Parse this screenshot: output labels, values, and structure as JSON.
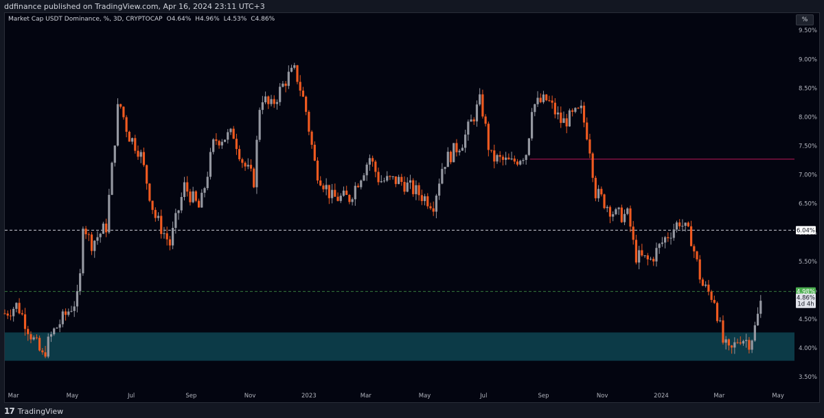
{
  "header": {
    "publisher_line": "ddfinance published on TradingView.com, Apr 16, 2024 23:11 UTC+3"
  },
  "legend": {
    "symbol": "Market Cap USDT Dominance, %, 3D, CRYPTOCAP",
    "open": "O4.64%",
    "high": "H4.96%",
    "low": "L4.53%",
    "close": "C4.86%"
  },
  "toolbar": {
    "percent_button": "%"
  },
  "footer": {
    "logo_mark": "17",
    "brand": "TradingView"
  },
  "colors": {
    "background": "#030510",
    "up_candle": "#9598a1",
    "down_candle": "#f05a20",
    "support_zone": "#0c3a47",
    "resistance_line": "#c2185b",
    "label_green": "#4caf50"
  },
  "chart_data": {
    "type": "candlestick",
    "title": "Market Cap USDT Dominance, %, 3D, CRYPTOCAP",
    "ylim": [
      3.3,
      9.8
    ],
    "y_ticks": [
      "9.50%",
      "9.00%",
      "8.50%",
      "8.00%",
      "7.50%",
      "7.00%",
      "6.50%",
      "6.00%",
      "5.50%",
      "5.00%",
      "4.50%",
      "4.00%",
      "3.50%"
    ],
    "x_ticks": [
      "Mar",
      "May",
      "Jul",
      "Sep",
      "Nov",
      "2023",
      "Mar",
      "May",
      "Jul",
      "Sep",
      "Nov",
      "2024",
      "Mar",
      "May"
    ],
    "price_series": [
      {
        "x": "2022-02-20",
        "y": 4.6
      },
      {
        "x": "2022-03-05",
        "y": 4.75
      },
      {
        "x": "2022-03-20",
        "y": 4.2
      },
      {
        "x": "2022-03-31",
        "y": 3.85
      },
      {
        "x": "2022-04-10",
        "y": 4.25
      },
      {
        "x": "2022-04-25",
        "y": 4.6
      },
      {
        "x": "2022-05-08",
        "y": 4.9
      },
      {
        "x": "2022-05-12",
        "y": 6.2
      },
      {
        "x": "2022-05-20",
        "y": 5.8
      },
      {
        "x": "2022-06-05",
        "y": 6.1
      },
      {
        "x": "2022-06-18",
        "y": 8.3
      },
      {
        "x": "2022-06-28",
        "y": 7.7
      },
      {
        "x": "2022-07-10",
        "y": 7.4
      },
      {
        "x": "2022-07-25",
        "y": 6.3
      },
      {
        "x": "2022-08-10",
        "y": 5.8
      },
      {
        "x": "2022-08-25",
        "y": 6.8
      },
      {
        "x": "2022-09-10",
        "y": 6.4
      },
      {
        "x": "2022-09-25",
        "y": 7.6
      },
      {
        "x": "2022-10-15",
        "y": 7.7
      },
      {
        "x": "2022-10-25",
        "y": 7.2
      },
      {
        "x": "2022-11-05",
        "y": 6.9
      },
      {
        "x": "2022-11-12",
        "y": 8.4
      },
      {
        "x": "2022-11-22",
        "y": 8.15
      },
      {
        "x": "2022-12-10",
        "y": 8.7
      },
      {
        "x": "2022-12-18",
        "y": 8.8
      },
      {
        "x": "2022-12-28",
        "y": 8.2
      },
      {
        "x": "2023-01-08",
        "y": 7.1
      },
      {
        "x": "2023-01-25",
        "y": 6.6
      },
      {
        "x": "2023-02-12",
        "y": 6.6
      },
      {
        "x": "2023-03-05",
        "y": 7.3
      },
      {
        "x": "2023-03-15",
        "y": 6.9
      },
      {
        "x": "2023-04-05",
        "y": 6.9
      },
      {
        "x": "2023-05-10",
        "y": 6.5
      },
      {
        "x": "2023-05-20",
        "y": 7.2
      },
      {
        "x": "2023-06-10",
        "y": 7.6
      },
      {
        "x": "2023-06-28",
        "y": 8.3
      },
      {
        "x": "2023-07-08",
        "y": 7.3
      },
      {
        "x": "2023-07-30",
        "y": 7.2
      },
      {
        "x": "2023-08-15",
        "y": 7.4
      },
      {
        "x": "2023-08-20",
        "y": 8.2
      },
      {
        "x": "2023-09-05",
        "y": 8.3
      },
      {
        "x": "2023-09-20",
        "y": 7.9
      },
      {
        "x": "2023-10-10",
        "y": 8.1
      },
      {
        "x": "2023-10-18",
        "y": 7.6
      },
      {
        "x": "2023-10-25",
        "y": 6.7
      },
      {
        "x": "2023-11-15",
        "y": 6.3
      },
      {
        "x": "2023-11-28",
        "y": 6.3
      },
      {
        "x": "2023-12-05",
        "y": 5.6
      },
      {
        "x": "2023-12-20",
        "y": 5.5
      },
      {
        "x": "2024-01-05",
        "y": 5.9
      },
      {
        "x": "2024-01-20",
        "y": 6.2
      },
      {
        "x": "2024-02-01",
        "y": 5.9
      },
      {
        "x": "2024-02-12",
        "y": 5.1
      },
      {
        "x": "2024-02-25",
        "y": 4.85
      },
      {
        "x": "2024-03-05",
        "y": 4.1
      },
      {
        "x": "2024-03-12",
        "y": 3.9
      },
      {
        "x": "2024-03-22",
        "y": 4.2
      },
      {
        "x": "2024-04-02",
        "y": 4.1
      },
      {
        "x": "2024-04-08",
        "y": 4.4
      },
      {
        "x": "2024-04-14",
        "y": 4.86
      }
    ],
    "support_zone": {
      "low": 3.78,
      "high": 4.27
    },
    "resistance_line": {
      "value": 7.27,
      "start": "2023-08-18"
    },
    "level_6_04": {
      "value": 6.04,
      "label": "6.04%"
    },
    "level_4_98": {
      "value": 4.98,
      "label": "4.98%"
    },
    "last_price_label": "4.86%",
    "countdown_label": "1d 4h"
  }
}
